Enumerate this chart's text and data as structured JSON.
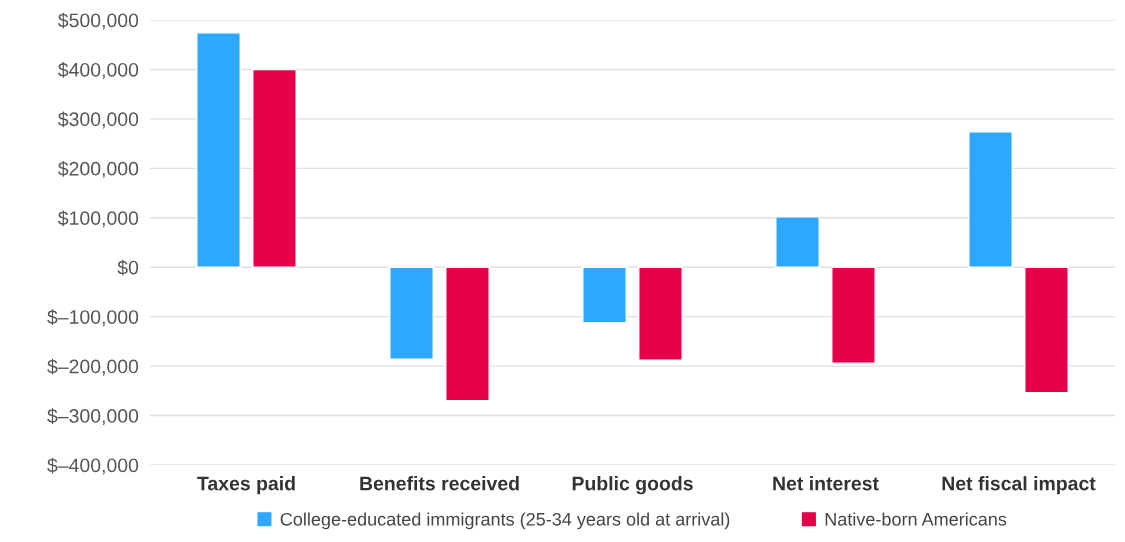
{
  "chart_data": {
    "type": "bar",
    "categories": [
      "Taxes paid",
      "Benefits received",
      "Public goods",
      "Net interest",
      "Net fiscal impact"
    ],
    "series": [
      {
        "name": "College-educated immigrants (25-34 years old at arrival)",
        "color": "#2ea8ff",
        "values": [
          474000,
          -186000,
          -112000,
          102000,
          274000
        ]
      },
      {
        "name": "Native-born Americans",
        "color": "#e5004a",
        "values": [
          400000,
          -270000,
          -188000,
          -194000,
          -254000
        ]
      }
    ],
    "ylim": [
      -400000,
      500000
    ],
    "yticks": [
      {
        "value": -400000,
        "label": "$–400,000"
      },
      {
        "value": -300000,
        "label": "$–300,000"
      },
      {
        "value": -200000,
        "label": "$–200,000"
      },
      {
        "value": -100000,
        "label": "$–100,000"
      },
      {
        "value": 0,
        "label": "$0"
      },
      {
        "value": 100000,
        "label": "$100,000"
      },
      {
        "value": 200000,
        "label": "$200,000"
      },
      {
        "value": 300000,
        "label": "$300,000"
      },
      {
        "value": 400000,
        "label": "$400,000"
      },
      {
        "value": 500000,
        "label": "$500,000"
      }
    ],
    "grid": "y",
    "legend": "bottom"
  }
}
